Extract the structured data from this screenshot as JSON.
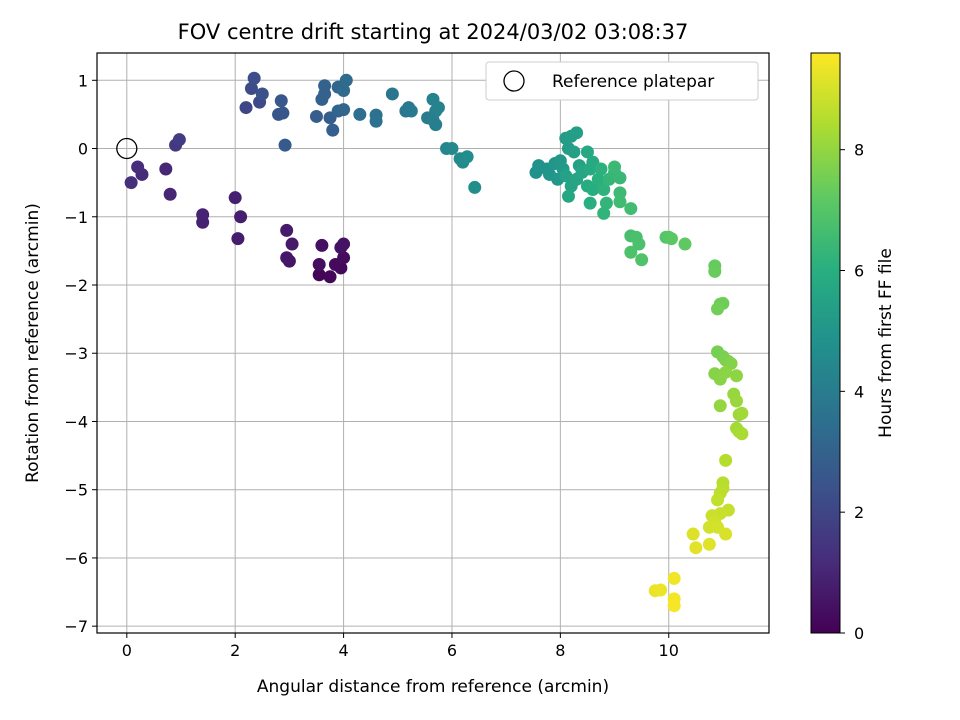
{
  "chart_data": {
    "type": "scatter",
    "title": "FOV centre drift starting at 2024/03/02 03:08:37",
    "xlabel": "Angular distance from reference (arcmin)",
    "ylabel": "Rotation from reference (arcmin)",
    "xlim": [
      -0.55,
      11.85
    ],
    "ylim": [
      -7.1,
      1.4
    ],
    "xticks": [
      0,
      2,
      4,
      6,
      8,
      10
    ],
    "xtick_labels": [
      "0",
      "2",
      "4",
      "6",
      "8",
      "10"
    ],
    "yticks": [
      1,
      0,
      -1,
      -2,
      -3,
      -4,
      -5,
      -6,
      -7
    ],
    "ytick_labels": [
      "1",
      "0",
      "−1",
      "−2",
      "−3",
      "−4",
      "−5",
      "−6",
      "−7"
    ],
    "grid": true,
    "colorbar": {
      "label": "Hours from first FF file",
      "colormap": "viridis",
      "range": [
        0,
        9.6
      ],
      "ticks": [
        0,
        2,
        4,
        6,
        8
      ],
      "tick_labels": [
        "0",
        "2",
        "4",
        "6",
        "8"
      ]
    },
    "legend": {
      "position": "top-right",
      "entries": [
        "Reference platepar"
      ]
    },
    "reference_point": {
      "x": 0,
      "y": 0
    },
    "points": [
      {
        "x": 3.55,
        "y": -1.85,
        "h": 0.1
      },
      {
        "x": 3.75,
        "y": -1.88,
        "h": 0.15
      },
      {
        "x": 3.95,
        "y": -1.75,
        "h": 0.2
      },
      {
        "x": 3.85,
        "y": -1.7,
        "h": 0.25
      },
      {
        "x": 4.0,
        "y": -1.6,
        "h": 0.3
      },
      {
        "x": 3.55,
        "y": -1.7,
        "h": 0.35
      },
      {
        "x": 3.6,
        "y": -1.42,
        "h": 0.4
      },
      {
        "x": 3.95,
        "y": -1.45,
        "h": 0.45
      },
      {
        "x": 4.0,
        "y": -1.4,
        "h": 0.5
      },
      {
        "x": 3.0,
        "y": -1.65,
        "h": 0.55
      },
      {
        "x": 2.95,
        "y": -1.6,
        "h": 0.6
      },
      {
        "x": 3.05,
        "y": -1.4,
        "h": 0.65
      },
      {
        "x": 2.95,
        "y": -1.2,
        "h": 0.7
      },
      {
        "x": 2.05,
        "y": -1.32,
        "h": 0.75
      },
      {
        "x": 2.1,
        "y": -1.0,
        "h": 0.8
      },
      {
        "x": 2.0,
        "y": -0.72,
        "h": 0.85
      },
      {
        "x": 1.4,
        "y": -1.08,
        "h": 0.9
      },
      {
        "x": 1.4,
        "y": -0.97,
        "h": 0.95
      },
      {
        "x": 0.8,
        "y": -0.67,
        "h": 1.0
      },
      {
        "x": 0.72,
        "y": -0.3,
        "h": 1.05
      },
      {
        "x": 0.28,
        "y": -0.38,
        "h": 1.15
      },
      {
        "x": 0.2,
        "y": -0.27,
        "h": 1.2
      },
      {
        "x": 0.08,
        "y": -0.5,
        "h": 1.3
      },
      {
        "x": 0.9,
        "y": 0.05,
        "h": 1.6
      },
      {
        "x": 0.97,
        "y": 0.13,
        "h": 1.7
      },
      {
        "x": 2.2,
        "y": 0.6,
        "h": 2.0
      },
      {
        "x": 2.45,
        "y": 0.68,
        "h": 2.1
      },
      {
        "x": 2.3,
        "y": 0.88,
        "h": 2.2
      },
      {
        "x": 2.35,
        "y": 1.03,
        "h": 2.3
      },
      {
        "x": 2.5,
        "y": 0.8,
        "h": 2.4
      },
      {
        "x": 2.8,
        "y": 0.5,
        "h": 2.5
      },
      {
        "x": 2.88,
        "y": 0.52,
        "h": 2.55
      },
      {
        "x": 2.85,
        "y": 0.7,
        "h": 2.6
      },
      {
        "x": 2.92,
        "y": 0.05,
        "h": 2.7
      },
      {
        "x": 3.5,
        "y": 0.47,
        "h": 2.8
      },
      {
        "x": 3.75,
        "y": 0.45,
        "h": 2.85
      },
      {
        "x": 3.8,
        "y": 0.27,
        "h": 2.9
      },
      {
        "x": 3.6,
        "y": 0.72,
        "h": 2.95
      },
      {
        "x": 3.65,
        "y": 0.8,
        "h": 3.0
      },
      {
        "x": 3.65,
        "y": 0.92,
        "h": 3.05
      },
      {
        "x": 3.9,
        "y": 0.55,
        "h": 3.1
      },
      {
        "x": 4.0,
        "y": 0.57,
        "h": 3.15
      },
      {
        "x": 3.9,
        "y": 0.9,
        "h": 3.2
      },
      {
        "x": 4.0,
        "y": 0.85,
        "h": 3.3
      },
      {
        "x": 4.05,
        "y": 1.0,
        "h": 3.35
      },
      {
        "x": 4.3,
        "y": 0.5,
        "h": 3.45
      },
      {
        "x": 4.6,
        "y": 0.4,
        "h": 3.55
      },
      {
        "x": 4.6,
        "y": 0.49,
        "h": 3.6
      },
      {
        "x": 4.9,
        "y": 0.8,
        "h": 3.7
      },
      {
        "x": 5.15,
        "y": 0.55,
        "h": 3.8
      },
      {
        "x": 5.2,
        "y": 0.6,
        "h": 3.85
      },
      {
        "x": 5.25,
        "y": 0.55,
        "h": 3.9
      },
      {
        "x": 5.55,
        "y": 0.45,
        "h": 4.0
      },
      {
        "x": 5.65,
        "y": 0.42,
        "h": 4.05
      },
      {
        "x": 5.7,
        "y": 0.35,
        "h": 4.1
      },
      {
        "x": 5.7,
        "y": 0.55,
        "h": 4.15
      },
      {
        "x": 5.75,
        "y": 0.6,
        "h": 4.2
      },
      {
        "x": 5.65,
        "y": 0.72,
        "h": 4.25
      },
      {
        "x": 5.9,
        "y": 0.0,
        "h": 4.4
      },
      {
        "x": 6.0,
        "y": 0.0,
        "h": 4.45
      },
      {
        "x": 6.15,
        "y": -0.15,
        "h": 4.5
      },
      {
        "x": 6.2,
        "y": -0.2,
        "h": 4.55
      },
      {
        "x": 6.28,
        "y": -0.12,
        "h": 4.6
      },
      {
        "x": 6.42,
        "y": -0.57,
        "h": 4.7
      },
      {
        "x": 7.55,
        "y": -0.35,
        "h": 4.8
      },
      {
        "x": 7.6,
        "y": -0.25,
        "h": 4.85
      },
      {
        "x": 7.75,
        "y": -0.3,
        "h": 4.9
      },
      {
        "x": 7.8,
        "y": -0.38,
        "h": 4.95
      },
      {
        "x": 7.9,
        "y": -0.22,
        "h": 5.0
      },
      {
        "x": 7.95,
        "y": -0.45,
        "h": 5.05
      },
      {
        "x": 8.0,
        "y": -0.18,
        "h": 5.1
      },
      {
        "x": 8.05,
        "y": -0.3,
        "h": 5.15
      },
      {
        "x": 8.1,
        "y": 0.15,
        "h": 5.2
      },
      {
        "x": 8.15,
        "y": 0.0,
        "h": 5.25
      },
      {
        "x": 8.2,
        "y": 0.18,
        "h": 5.3
      },
      {
        "x": 8.3,
        "y": 0.23,
        "h": 5.35
      },
      {
        "x": 8.25,
        "y": -0.05,
        "h": 5.4
      },
      {
        "x": 8.35,
        "y": -0.25,
        "h": 5.45
      },
      {
        "x": 8.1,
        "y": -0.4,
        "h": 5.5
      },
      {
        "x": 8.2,
        "y": -0.55,
        "h": 5.55
      },
      {
        "x": 8.3,
        "y": -0.45,
        "h": 5.6
      },
      {
        "x": 8.4,
        "y": -0.35,
        "h": 5.65
      },
      {
        "x": 8.15,
        "y": -0.7,
        "h": 5.7
      },
      {
        "x": 8.5,
        "y": -0.05,
        "h": 5.75
      },
      {
        "x": 8.55,
        "y": -0.3,
        "h": 5.8
      },
      {
        "x": 8.6,
        "y": -0.2,
        "h": 5.85
      },
      {
        "x": 8.5,
        "y": -0.55,
        "h": 5.9
      },
      {
        "x": 8.6,
        "y": -0.6,
        "h": 5.95
      },
      {
        "x": 8.55,
        "y": -0.8,
        "h": 6.0
      },
      {
        "x": 8.7,
        "y": -0.45,
        "h": 6.05
      },
      {
        "x": 8.75,
        "y": -0.3,
        "h": 6.1
      },
      {
        "x": 8.8,
        "y": -0.6,
        "h": 6.15
      },
      {
        "x": 8.8,
        "y": -0.95,
        "h": 6.2
      },
      {
        "x": 8.85,
        "y": -0.8,
        "h": 6.25
      },
      {
        "x": 8.9,
        "y": -0.45,
        "h": 6.3
      },
      {
        "x": 9.0,
        "y": -0.35,
        "h": 6.35
      },
      {
        "x": 9.1,
        "y": -0.43,
        "h": 6.4
      },
      {
        "x": 9.0,
        "y": -0.27,
        "h": 6.45
      },
      {
        "x": 9.1,
        "y": -0.65,
        "h": 6.5
      },
      {
        "x": 9.1,
        "y": -0.78,
        "h": 6.55
      },
      {
        "x": 9.3,
        "y": -0.88,
        "h": 6.6
      },
      {
        "x": 9.3,
        "y": -1.28,
        "h": 6.7
      },
      {
        "x": 9.4,
        "y": -1.3,
        "h": 6.75
      },
      {
        "x": 9.45,
        "y": -1.4,
        "h": 6.8
      },
      {
        "x": 9.3,
        "y": -1.52,
        "h": 6.85
      },
      {
        "x": 9.5,
        "y": -1.63,
        "h": 6.9
      },
      {
        "x": 9.95,
        "y": -1.3,
        "h": 7.0
      },
      {
        "x": 10.0,
        "y": -1.3,
        "h": 7.05
      },
      {
        "x": 10.05,
        "y": -1.32,
        "h": 7.1
      },
      {
        "x": 10.3,
        "y": -1.4,
        "h": 7.2
      },
      {
        "x": 10.85,
        "y": -1.72,
        "h": 7.3
      },
      {
        "x": 10.85,
        "y": -1.8,
        "h": 7.35
      },
      {
        "x": 10.95,
        "y": -2.28,
        "h": 7.4
      },
      {
        "x": 11.0,
        "y": -2.27,
        "h": 7.45
      },
      {
        "x": 10.9,
        "y": -2.35,
        "h": 7.5
      },
      {
        "x": 10.9,
        "y": -2.98,
        "h": 7.55
      },
      {
        "x": 11.0,
        "y": -3.05,
        "h": 7.6
      },
      {
        "x": 11.05,
        "y": -3.1,
        "h": 7.65
      },
      {
        "x": 11.1,
        "y": -3.12,
        "h": 7.7
      },
      {
        "x": 11.15,
        "y": -3.15,
        "h": 7.75
      },
      {
        "x": 10.85,
        "y": -3.3,
        "h": 7.8
      },
      {
        "x": 10.95,
        "y": -3.38,
        "h": 7.85
      },
      {
        "x": 11.05,
        "y": -3.28,
        "h": 7.9
      },
      {
        "x": 11.25,
        "y": -3.33,
        "h": 7.95
      },
      {
        "x": 10.95,
        "y": -3.77,
        "h": 8.0
      },
      {
        "x": 11.2,
        "y": -3.6,
        "h": 8.05
      },
      {
        "x": 11.25,
        "y": -3.7,
        "h": 8.1
      },
      {
        "x": 11.3,
        "y": -3.9,
        "h": 8.15
      },
      {
        "x": 11.35,
        "y": -3.88,
        "h": 8.2
      },
      {
        "x": 11.25,
        "y": -4.1,
        "h": 8.25
      },
      {
        "x": 11.3,
        "y": -4.15,
        "h": 8.3
      },
      {
        "x": 11.35,
        "y": -4.18,
        "h": 8.35
      },
      {
        "x": 11.05,
        "y": -4.57,
        "h": 8.5
      },
      {
        "x": 11.0,
        "y": -4.9,
        "h": 8.55
      },
      {
        "x": 11.0,
        "y": -4.98,
        "h": 8.6
      },
      {
        "x": 10.95,
        "y": -5.05,
        "h": 8.65
      },
      {
        "x": 10.9,
        "y": -5.15,
        "h": 8.7
      },
      {
        "x": 11.1,
        "y": -5.3,
        "h": 8.75
      },
      {
        "x": 10.95,
        "y": -5.35,
        "h": 8.8
      },
      {
        "x": 10.8,
        "y": -5.38,
        "h": 8.85
      },
      {
        "x": 10.85,
        "y": -5.48,
        "h": 8.9
      },
      {
        "x": 10.75,
        "y": -5.55,
        "h": 8.95
      },
      {
        "x": 10.9,
        "y": -5.55,
        "h": 9.0
      },
      {
        "x": 11.05,
        "y": -5.65,
        "h": 9.05
      },
      {
        "x": 10.45,
        "y": -5.65,
        "h": 9.1
      },
      {
        "x": 10.75,
        "y": -5.8,
        "h": 9.15
      },
      {
        "x": 10.5,
        "y": -5.85,
        "h": 9.2
      },
      {
        "x": 9.75,
        "y": -6.48,
        "h": 9.3
      },
      {
        "x": 9.85,
        "y": -6.47,
        "h": 9.35
      },
      {
        "x": 10.1,
        "y": -6.3,
        "h": 9.4
      },
      {
        "x": 10.1,
        "y": -6.6,
        "h": 9.45
      },
      {
        "x": 10.1,
        "y": -6.7,
        "h": 9.5
      }
    ]
  }
}
